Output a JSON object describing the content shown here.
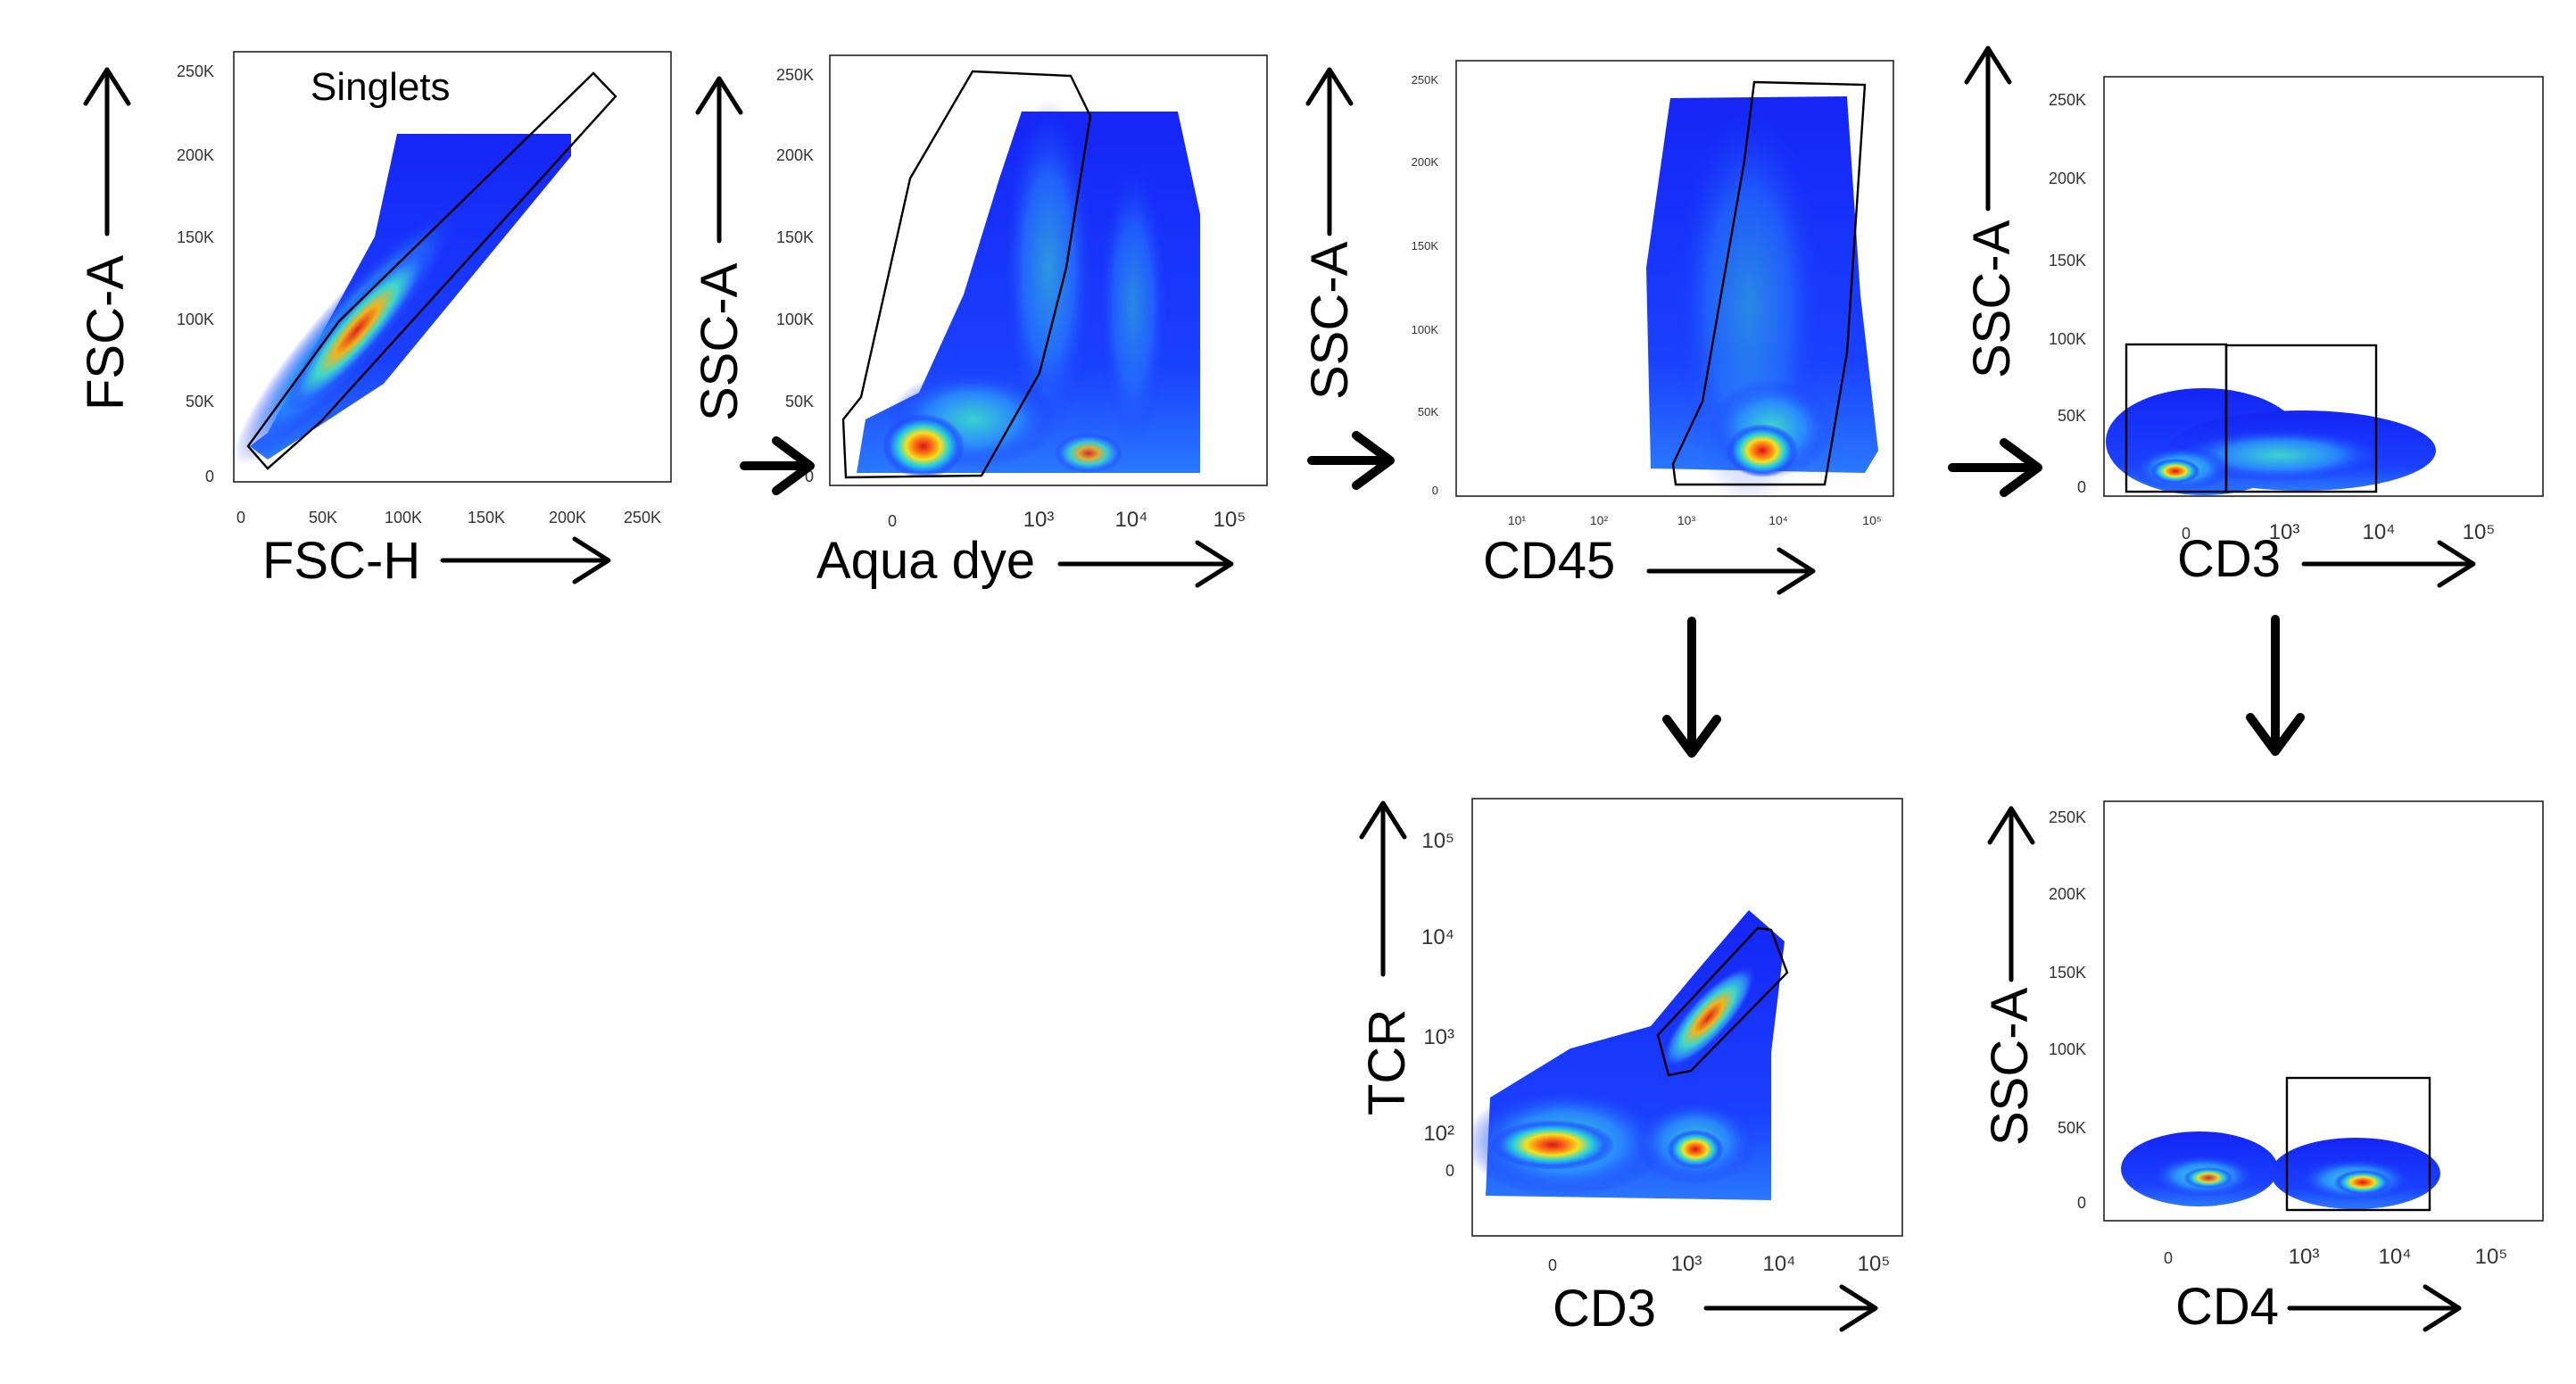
{
  "panels": [
    {
      "id": "singlets",
      "x_label": "FSC-H",
      "y_label": "FSC-A",
      "gate_label": "Singlets",
      "x_ticks": [
        "0",
        "50K",
        "100K",
        "150K",
        "200K",
        "250K"
      ],
      "y_ticks": [
        "0",
        "50K",
        "100K",
        "150K",
        "200K",
        "250K"
      ]
    },
    {
      "id": "live",
      "x_label": "Aqua dye",
      "y_label": "SSC-A",
      "x_ticks": [
        "0",
        "10³",
        "10⁴",
        "10⁵"
      ],
      "y_ticks": [
        "0",
        "50K",
        "100K",
        "150K",
        "200K",
        "250K"
      ]
    },
    {
      "id": "cd45",
      "x_label": "CD45",
      "y_label": "SSC-A",
      "x_ticks": [
        "10¹",
        "10²",
        "10³",
        "10⁴",
        "10⁵"
      ],
      "y_ticks": [
        "0",
        "50K",
        "100K",
        "150K",
        "200K",
        "250K"
      ]
    },
    {
      "id": "cd3-ssc",
      "x_label": "CD3",
      "y_label": "SSC-A",
      "x_ticks": [
        "0",
        "10³",
        "10⁴",
        "10⁵"
      ],
      "y_ticks": [
        "0",
        "50K",
        "100K",
        "150K",
        "200K",
        "250K"
      ]
    },
    {
      "id": "cd3-tcr",
      "x_label": "CD3",
      "y_label": "TCR",
      "x_ticks": [
        "0",
        "10³",
        "10⁴",
        "10⁵"
      ],
      "y_ticks": [
        "0",
        "10²",
        "10³",
        "10⁴",
        "10⁵"
      ]
    },
    {
      "id": "cd4-ssc",
      "x_label": "CD4",
      "y_label": "SSC-A",
      "x_ticks": [
        "0",
        "10³",
        "10⁴",
        "10⁵"
      ],
      "y_ticks": [
        "0",
        "50K",
        "100K",
        "150K",
        "200K",
        "250K"
      ]
    }
  ],
  "colors": {
    "low_density": "#1f3fff",
    "mid_density": "#19c8e6",
    "high_density": "#f0e41e",
    "peak_density": "#e8201e",
    "gate": "#000000",
    "arrow": "#000000"
  }
}
